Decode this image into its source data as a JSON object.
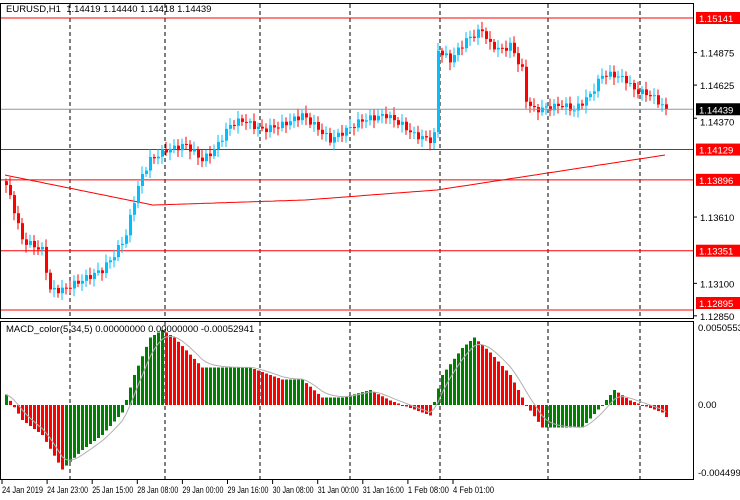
{
  "header": {
    "symbol": "EURUSD,H1",
    "ohlc": "1.14419 1.14440 1.14418 1.14439"
  },
  "indicator": {
    "name": "MACD_color(5,34,5)",
    "values": "0.00000000 0.00000000 -0.00052941"
  },
  "colors": {
    "up": "#00bfff",
    "down": "#ff0000",
    "hist_up": "#008000",
    "hist_down": "#ff0000",
    "level": "#ff0000",
    "ma": "#ff0000",
    "signal": "#b0b0b0"
  },
  "chart_data": {
    "type": "candlestick",
    "price_axis_labels": [
      "1.14875",
      "1.14625",
      "1.14370",
      "1.13610",
      "1.13100",
      "1.12850"
    ],
    "price_axis_values": [
      1.14875,
      1.14625,
      1.1437,
      1.1361,
      1.131,
      1.1285
    ],
    "levels": [
      {
        "label": "1.15141",
        "value": 1.15141
      },
      {
        "label": "1.14129",
        "value": 1.14129
      },
      {
        "label": "1.13896",
        "value": 1.13896
      },
      {
        "label": "1.13351",
        "value": 1.13351
      },
      {
        "label": "1.12895",
        "value": 1.12895
      }
    ],
    "current_price": {
      "label": "1.14439",
      "value": 1.14439
    },
    "close_keyframes": [
      [
        0,
        1.13856
      ],
      [
        2,
        1.13664
      ],
      [
        4,
        1.13433
      ],
      [
        9,
        1.13356
      ],
      [
        11,
        1.13049
      ],
      [
        14,
        1.13049
      ],
      [
        19,
        1.13126
      ],
      [
        24,
        1.13203
      ],
      [
        27,
        1.13318
      ],
      [
        30,
        1.13472
      ],
      [
        32,
        1.13741
      ],
      [
        34,
        1.13933
      ],
      [
        36,
        1.14049
      ],
      [
        40,
        1.14126
      ],
      [
        45,
        1.14164
      ],
      [
        49,
        1.14049
      ],
      [
        52,
        1.14126
      ],
      [
        56,
        1.14318
      ],
      [
        59,
        1.14356
      ],
      [
        64,
        1.1428
      ],
      [
        69,
        1.14318
      ],
      [
        74,
        1.14395
      ],
      [
        77,
        1.14318
      ],
      [
        81,
        1.14203
      ],
      [
        85,
        1.1428
      ],
      [
        89,
        1.14356
      ],
      [
        95,
        1.14395
      ],
      [
        99,
        1.14318
      ],
      [
        102,
        1.14241
      ],
      [
        106,
        1.14203
      ],
      [
        107,
        1.14241
      ],
      [
        108,
        1.14895
      ],
      [
        111,
        1.14818
      ],
      [
        115,
        1.14972
      ],
      [
        119,
        1.15049
      ],
      [
        121,
        1.14933
      ],
      [
        124,
        1.14895
      ],
      [
        126,
        1.14933
      ],
      [
        129,
        1.14741
      ],
      [
        130,
        1.1451
      ],
      [
        132,
        1.14433
      ],
      [
        139,
        1.14472
      ],
      [
        142,
        1.14433
      ],
      [
        146,
        1.14549
      ],
      [
        149,
        1.14703
      ],
      [
        152,
        1.14703
      ],
      [
        155,
        1.14664
      ],
      [
        157,
        1.14587
      ],
      [
        161,
        1.14549
      ],
      [
        164,
        1.14472
      ],
      [
        165,
        1.14439
      ]
    ],
    "ma_keyframes": [
      [
        0,
        1.13933
      ],
      [
        37,
        1.13702
      ],
      [
        75,
        1.13741
      ],
      [
        108,
        1.13818
      ],
      [
        165,
        1.14087
      ]
    ],
    "macd_axis": {
      "top_label": "0.0050553",
      "zero_label": "0.00",
      "bottom_label": "-0.004499"
    },
    "macd_keyframes": [
      [
        0,
        0.0007
      ],
      [
        4,
        -0.001
      ],
      [
        9,
        -0.002
      ],
      [
        14,
        -0.0043
      ],
      [
        19,
        -0.003
      ],
      [
        24,
        -0.002
      ],
      [
        29,
        -0.0005
      ],
      [
        32,
        0.002
      ],
      [
        36,
        0.0045
      ],
      [
        39,
        0.005
      ],
      [
        42,
        0.0045
      ],
      [
        49,
        0.0025
      ],
      [
        56,
        0.0025
      ],
      [
        61,
        0.0025
      ],
      [
        69,
        0.0017
      ],
      [
        74,
        0.0017
      ],
      [
        79,
        0.0005
      ],
      [
        84,
        0.0005
      ],
      [
        91,
        0.001
      ],
      [
        96,
        0.0003
      ],
      [
        104,
        -0.0005
      ],
      [
        106,
        -0.0007
      ],
      [
        109,
        0.002
      ],
      [
        114,
        0.0038
      ],
      [
        117,
        0.0045
      ],
      [
        121,
        0.0035
      ],
      [
        126,
        0.002
      ],
      [
        130,
        0
      ],
      [
        134,
        -0.0015
      ],
      [
        139,
        -0.0015
      ],
      [
        144,
        -0.0015
      ],
      [
        149,
        0
      ],
      [
        152,
        0.001
      ],
      [
        156,
        0.0003
      ],
      [
        164,
        -0.0005
      ],
      [
        165,
        -0.0008
      ]
    ],
    "time_labels": [
      "24 Jan 2019",
      "24 Jan 23:00",
      "25 Jan 15:00",
      "28 Jan 08:00",
      "29 Jan 00:00",
      "29 Jan 16:00",
      "30 Jan 08:00",
      "31 Jan 00:00",
      "31 Jan 16:00",
      "1 Feb 08:00",
      "4 Feb 01:00"
    ]
  }
}
